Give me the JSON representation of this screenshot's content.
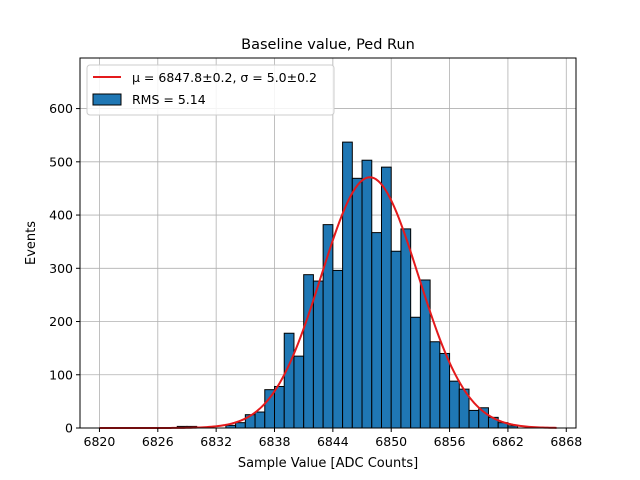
{
  "chart_data": {
    "type": "bar",
    "title": "Baseline value, Ped Run",
    "xlabel": "Sample Value [ADC Counts]",
    "ylabel": "Events",
    "xlim": [
      6818,
      6869
    ],
    "ylim": [
      0,
      695
    ],
    "grid": true,
    "legend_position": "top-left",
    "x_ticks": [
      6820,
      6826,
      6832,
      6838,
      6844,
      6850,
      6856,
      6862,
      6868
    ],
    "y_ticks": [
      0,
      100,
      200,
      300,
      400,
      500,
      600
    ],
    "histogram": {
      "name": "RMS = 5.14",
      "color": "#1f77b4",
      "edge_color": "#000000",
      "bin_width": 1,
      "bin_lefts": [
        6828,
        6829,
        6833,
        6834,
        6835,
        6836,
        6837,
        6838,
        6839,
        6840,
        6841,
        6842,
        6843,
        6844,
        6845,
        6846,
        6847,
        6848,
        6849,
        6850,
        6851,
        6852,
        6853,
        6854,
        6855,
        6856,
        6857,
        6858,
        6859,
        6860,
        6861,
        6862
      ],
      "counts": [
        3,
        3,
        5,
        10,
        25,
        30,
        72,
        78,
        178,
        135,
        288,
        276,
        382,
        296,
        537,
        469,
        503,
        367,
        490,
        332,
        374,
        208,
        278,
        162,
        140,
        88,
        73,
        33,
        38,
        20,
        10,
        4
      ]
    },
    "fit": {
      "name": "μ = 6847.8±0.2, σ = 5.0±0.2",
      "color": "#e41a1c",
      "function": "gaussian",
      "mu": 6847.8,
      "sigma": 5.0,
      "amplitude": 471,
      "x_range": [
        6820,
        6867
      ]
    }
  }
}
